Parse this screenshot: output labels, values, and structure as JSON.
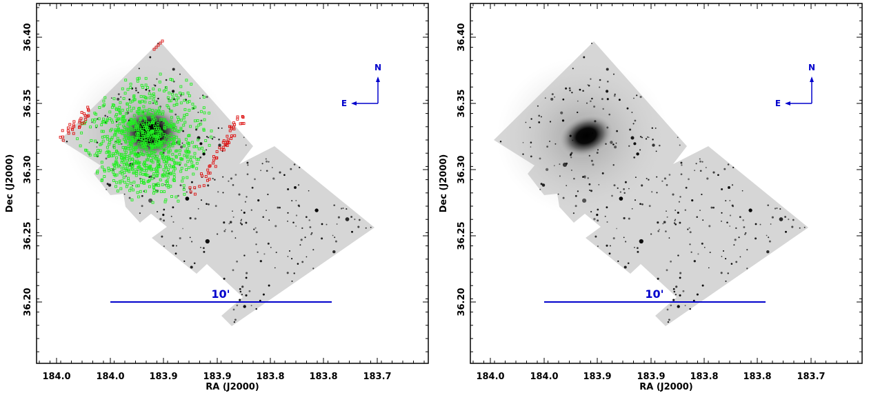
{
  "colors": {
    "frame": "#000000",
    "image_background": "#d6d6d6",
    "marker_green": "#22ee22",
    "marker_red": "#dd1111",
    "annotation_blue": "#0000cc"
  },
  "chart_data": [
    {
      "type": "scatter",
      "panel": "left",
      "xlabel": "RA (J2000)",
      "ylabel": "Dec (J2000)",
      "x_tick_labels": [
        "184.0",
        "184.0",
        "183.9",
        "183.9",
        "183.8",
        "183.8",
        "183.7"
      ],
      "y_tick_labels": [
        "36.20",
        "36.25",
        "36.30",
        "36.35",
        "36.40"
      ],
      "overlay_series": [
        "green squares",
        "red squares"
      ],
      "compass": {
        "north": "N",
        "east": "E"
      },
      "scale_bar": "10'"
    },
    {
      "type": "scatter",
      "panel": "right",
      "xlabel": "RA (J2000)",
      "ylabel": "Dec (J2000)",
      "x_tick_labels": [
        "184.0",
        "184.0",
        "183.9",
        "183.9",
        "183.8",
        "183.8",
        "183.7"
      ],
      "y_tick_labels": [
        "36.20",
        "36.25",
        "36.30",
        "36.35",
        "36.40"
      ],
      "compass": {
        "north": "N",
        "east": "E"
      },
      "scale_bar": "10'"
    }
  ]
}
